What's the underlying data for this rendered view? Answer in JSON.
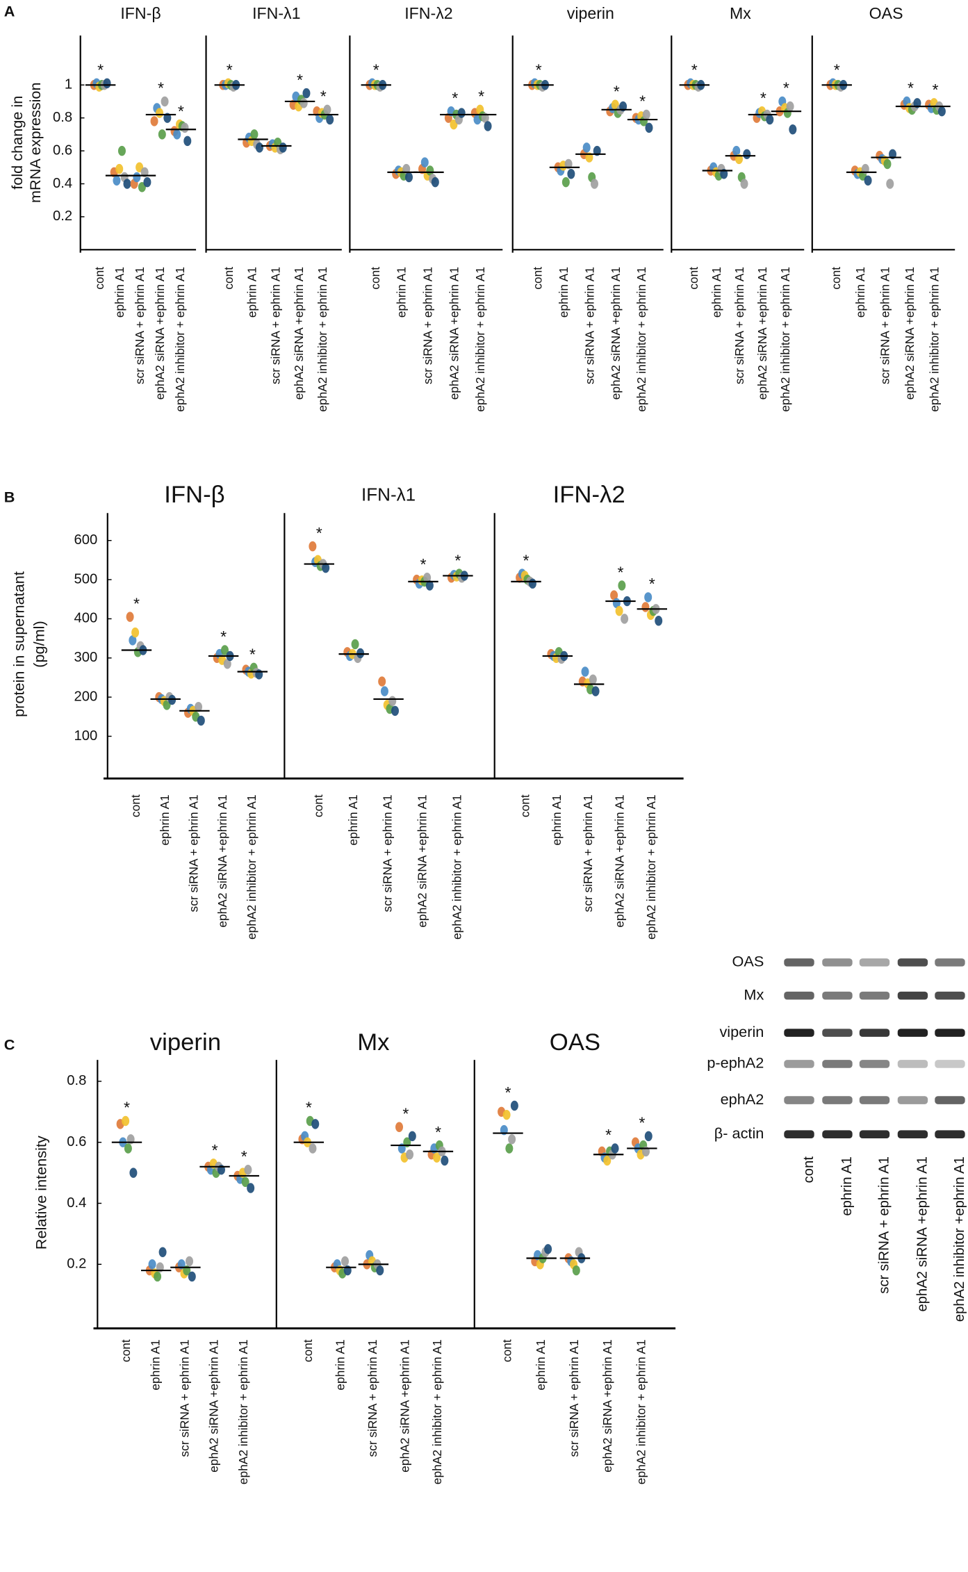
{
  "panel_labels": [
    "A",
    "B",
    "C"
  ],
  "chart_data": [
    {
      "type": "strip",
      "title": "IFN-β",
      "y_label": [
        "fold change in",
        "mRNA expression"
      ],
      "categories": [
        "cont",
        "ephrin A1",
        "scr siRNA  + ephrin A1",
        "ephA2 siRNA +ephrin A1",
        "ephA2 inhibitor + ephrin A1"
      ],
      "values": [
        1.0,
        0.45,
        0.45,
        0.82,
        0.73
      ],
      "annotations": [
        "*",
        null,
        null,
        "*",
        "*"
      ],
      "ylim": [
        0,
        1.3
      ],
      "yticks": [
        0.2,
        0.4,
        0.6,
        0.8,
        1
      ],
      "series": [
        {
          "color": "#e07b39",
          "values": [
            1.0,
            0.47,
            0.4,
            0.78,
            0.72
          ]
        },
        {
          "color": "#4a8cc7",
          "values": [
            1.01,
            0.42,
            0.44,
            0.86,
            0.7
          ]
        },
        {
          "color": "#f2c12e",
          "values": [
            0.99,
            0.49,
            0.5,
            0.83,
            0.76
          ]
        },
        {
          "color": "#5a9e4b",
          "values": [
            1.0,
            0.6,
            0.38,
            0.7,
            0.75
          ]
        },
        {
          "color": "#a0a0a0",
          "values": [
            1.0,
            0.44,
            0.47,
            0.9,
            0.74
          ]
        },
        {
          "color": "#1f4e79",
          "values": [
            1.01,
            0.4,
            0.41,
            0.8,
            0.66
          ]
        }
      ]
    },
    {
      "type": "strip",
      "title": "IFN-λ1",
      "categories": [
        "cont",
        "ephrin A1",
        "scr siRNA  + ephrin A1",
        "ephA2 siRNA +ephrin A1",
        "ephA2 inhibitor + ephrin A1"
      ],
      "values": [
        1.0,
        0.67,
        0.63,
        0.9,
        0.82
      ],
      "annotations": [
        "*",
        null,
        null,
        "*",
        "*"
      ],
      "ylim": [
        0,
        1.3
      ],
      "series": [
        {
          "color": "#e07b39",
          "values": [
            1.0,
            0.65,
            0.63,
            0.88,
            0.84
          ]
        },
        {
          "color": "#4a8cc7",
          "values": [
            1.0,
            0.68,
            0.64,
            0.93,
            0.8
          ]
        },
        {
          "color": "#f2c12e",
          "values": [
            1.01,
            0.66,
            0.62,
            0.87,
            0.83
          ]
        },
        {
          "color": "#5a9e4b",
          "values": [
            1.0,
            0.7,
            0.65,
            0.91,
            0.82
          ]
        },
        {
          "color": "#a0a0a0",
          "values": [
            0.99,
            0.64,
            0.61,
            0.89,
            0.85
          ]
        },
        {
          "color": "#1f4e79",
          "values": [
            1.0,
            0.62,
            0.62,
            0.95,
            0.79
          ]
        }
      ]
    },
    {
      "type": "strip",
      "title": "IFN-λ2",
      "categories": [
        "cont",
        "ephrin A1",
        "scr siRNA  + ephrin A1",
        "ephA2 siRNA +ephrin A1",
        "ephA2 inhibitor + ephrin A1"
      ],
      "values": [
        1.0,
        0.47,
        0.47,
        0.82,
        0.82
      ],
      "annotations": [
        "*",
        null,
        null,
        "*",
        "*"
      ],
      "ylim": [
        0,
        1.3
      ],
      "series": [
        {
          "color": "#e07b39",
          "values": [
            1.0,
            0.46,
            0.49,
            0.8,
            0.83
          ]
        },
        {
          "color": "#4a8cc7",
          "values": [
            1.01,
            0.48,
            0.53,
            0.84,
            0.79
          ]
        },
        {
          "color": "#f2c12e",
          "values": [
            1.0,
            0.47,
            0.45,
            0.76,
            0.85
          ]
        },
        {
          "color": "#5a9e4b",
          "values": [
            1.0,
            0.45,
            0.48,
            0.82,
            0.81
          ]
        },
        {
          "color": "#a0a0a0",
          "values": [
            0.99,
            0.49,
            0.43,
            0.79,
            0.8
          ]
        },
        {
          "color": "#1f4e79",
          "values": [
            1.0,
            0.44,
            0.41,
            0.83,
            0.75
          ]
        }
      ]
    },
    {
      "type": "strip",
      "title": "viperin",
      "categories": [
        "cont",
        "ephrin A1",
        "scr siRNA  + ephrin A1",
        "ephA2 siRNA +ephrin A1",
        "ephA2 inhibitor + ephrin A1"
      ],
      "values": [
        1.0,
        0.5,
        0.58,
        0.85,
        0.79
      ],
      "annotations": [
        "*",
        null,
        null,
        "*",
        "*"
      ],
      "ylim": [
        0,
        1.3
      ],
      "series": [
        {
          "color": "#e07b39",
          "values": [
            1.0,
            0.5,
            0.58,
            0.84,
            0.8
          ]
        },
        {
          "color": "#4a8cc7",
          "values": [
            1.01,
            0.48,
            0.62,
            0.86,
            0.79
          ]
        },
        {
          "color": "#f2c12e",
          "values": [
            1.0,
            0.51,
            0.56,
            0.88,
            0.81
          ]
        },
        {
          "color": "#5a9e4b",
          "values": [
            1.0,
            0.41,
            0.44,
            0.83,
            0.78
          ]
        },
        {
          "color": "#a0a0a0",
          "values": [
            0.99,
            0.52,
            0.4,
            0.85,
            0.82
          ]
        },
        {
          "color": "#1f4e79",
          "values": [
            1.0,
            0.46,
            0.6,
            0.87,
            0.74
          ]
        }
      ]
    },
    {
      "type": "strip",
      "title": "Mx",
      "categories": [
        "cont",
        "ephrin A1",
        "scr siRNA  + ephrin A1",
        "ephA2 siRNA +ephrin A1",
        "ephA2 inhibitor + ephrin A1"
      ],
      "values": [
        1.0,
        0.48,
        0.57,
        0.82,
        0.84
      ],
      "annotations": [
        "*",
        null,
        null,
        "*",
        "*"
      ],
      "ylim": [
        0,
        1.3
      ],
      "series": [
        {
          "color": "#e07b39",
          "values": [
            1.0,
            0.48,
            0.57,
            0.8,
            0.84
          ]
        },
        {
          "color": "#4a8cc7",
          "values": [
            1.01,
            0.5,
            0.6,
            0.83,
            0.9
          ]
        },
        {
          "color": "#f2c12e",
          "values": [
            1.0,
            0.47,
            0.55,
            0.84,
            0.86
          ]
        },
        {
          "color": "#5a9e4b",
          "values": [
            1.0,
            0.45,
            0.44,
            0.81,
            0.83
          ]
        },
        {
          "color": "#a0a0a0",
          "values": [
            0.99,
            0.49,
            0.4,
            0.82,
            0.87
          ]
        },
        {
          "color": "#1f4e79",
          "values": [
            1.0,
            0.46,
            0.58,
            0.79,
            0.73
          ]
        }
      ]
    },
    {
      "type": "strip",
      "title": "OAS",
      "categories": [
        "cont",
        "ephrin A1",
        "scr siRNA  + ephrin A1",
        "ephA2 siRNA +ephrin A1",
        "ephA2 inhibitor + ephrin A1"
      ],
      "values": [
        1.0,
        0.47,
        0.56,
        0.87,
        0.87
      ],
      "annotations": [
        "*",
        null,
        null,
        "*",
        "*"
      ],
      "ylim": [
        0,
        1.3
      ],
      "series": [
        {
          "color": "#e07b39",
          "values": [
            1.0,
            0.48,
            0.57,
            0.88,
            0.88
          ]
        },
        {
          "color": "#4a8cc7",
          "values": [
            1.01,
            0.46,
            0.55,
            0.9,
            0.86
          ]
        },
        {
          "color": "#f2c12e",
          "values": [
            1.0,
            0.47,
            0.54,
            0.86,
            0.89
          ]
        },
        {
          "color": "#5a9e4b",
          "values": [
            1.0,
            0.45,
            0.52,
            0.85,
            0.85
          ]
        },
        {
          "color": "#a0a0a0",
          "values": [
            0.99,
            0.49,
            0.4,
            0.87,
            0.87
          ]
        },
        {
          "color": "#1f4e79",
          "values": [
            1.0,
            0.42,
            0.58,
            0.89,
            0.84
          ]
        }
      ]
    },
    {
      "type": "strip",
      "title": "IFN-β",
      "y_label": [
        "protein in supernatant",
        "(pg/ml)"
      ],
      "categories": [
        "cont",
        "ephrin A1",
        "scr siRNA + ephrin A1",
        "ephA2 siRNA +ephrin A1",
        "ephA2 inhibitor + ephrin A1"
      ],
      "values": [
        320,
        195,
        165,
        305,
        265
      ],
      "annotations": [
        "*",
        null,
        null,
        "*",
        "*"
      ],
      "ylim": [
        0,
        670
      ],
      "yticks": [
        100,
        200,
        300,
        400,
        500,
        600
      ],
      "series": [
        {
          "color": "#e07b39",
          "values": [
            405,
            200,
            160,
            300,
            270
          ]
        },
        {
          "color": "#4a8cc7",
          "values": [
            345,
            195,
            170,
            310,
            265
          ]
        },
        {
          "color": "#f2c12e",
          "values": [
            365,
            190,
            165,
            295,
            260
          ]
        },
        {
          "color": "#5a9e4b",
          "values": [
            315,
            180,
            150,
            320,
            275
          ]
        },
        {
          "color": "#a0a0a0",
          "values": [
            330,
            200,
            175,
            285,
            262
          ]
        },
        {
          "color": "#1f4e79",
          "values": [
            320,
            193,
            140,
            305,
            258
          ]
        }
      ]
    },
    {
      "type": "strip",
      "title": "IFN-λ1",
      "categories": [
        "cont",
        "ephrin A1",
        "scr siRNA  + ephrin A1",
        "ephA2 siRNA +ephrin A1",
        "ephA2 inhibitor + ephrin A1"
      ],
      "values": [
        540,
        310,
        195,
        495,
        510
      ],
      "annotations": [
        "*",
        null,
        null,
        "*",
        "*"
      ],
      "ylim": [
        0,
        670
      ],
      "series": [
        {
          "color": "#e07b39",
          "values": [
            585,
            315,
            240,
            500,
            505
          ]
        },
        {
          "color": "#4a8cc7",
          "values": [
            545,
            305,
            215,
            490,
            512
          ]
        },
        {
          "color": "#f2c12e",
          "values": [
            550,
            310,
            180,
            498,
            508
          ]
        },
        {
          "color": "#5a9e4b",
          "values": [
            535,
            335,
            170,
            495,
            515
          ]
        },
        {
          "color": "#a0a0a0",
          "values": [
            540,
            300,
            190,
            505,
            505
          ]
        },
        {
          "color": "#1f4e79",
          "values": [
            530,
            312,
            165,
            485,
            510
          ]
        }
      ]
    },
    {
      "type": "strip",
      "title": "IFN-λ2",
      "categories": [
        "cont",
        "ephrin A1",
        "scr siRNA  + ephrin A1",
        "ephA2 siRNA +ephrin A1",
        "ephA2 inhibitor + ephrin A1"
      ],
      "values": [
        495,
        305,
        233,
        445,
        425
      ],
      "annotations": [
        "*",
        null,
        null,
        "*",
        "*"
      ],
      "ylim": [
        0,
        670
      ],
      "series": [
        {
          "color": "#e07b39",
          "values": [
            505,
            310,
            240,
            460,
            430
          ]
        },
        {
          "color": "#4a8cc7",
          "values": [
            515,
            305,
            265,
            440,
            455
          ]
        },
        {
          "color": "#f2c12e",
          "values": [
            510,
            300,
            235,
            420,
            410
          ]
        },
        {
          "color": "#5a9e4b",
          "values": [
            500,
            315,
            220,
            485,
            420
          ]
        },
        {
          "color": "#a0a0a0",
          "values": [
            495,
            298,
            245,
            400,
            425
          ]
        },
        {
          "color": "#1f4e79",
          "values": [
            490,
            305,
            215,
            445,
            395
          ]
        }
      ]
    },
    {
      "type": "strip",
      "title": "viperin",
      "y_label": [
        "Relative intensity"
      ],
      "categories": [
        "cont",
        "ephrin A1",
        "scr siRNA + ephrin A1",
        "ephA2 siRNA +ephrin A1",
        "ephA2 inhibitor + ephrin A1"
      ],
      "values": [
        0.6,
        0.18,
        0.19,
        0.52,
        0.49
      ],
      "annotations": [
        "*",
        null,
        null,
        "*",
        "*"
      ],
      "ylim": [
        0,
        0.87
      ],
      "yticks": [
        0.2,
        0.4,
        0.6,
        0.8
      ],
      "series": [
        {
          "color": "#e07b39",
          "values": [
            0.66,
            0.18,
            0.19,
            0.52,
            0.49
          ]
        },
        {
          "color": "#4a8cc7",
          "values": [
            0.6,
            0.2,
            0.2,
            0.51,
            0.48
          ]
        },
        {
          "color": "#f2c12e",
          "values": [
            0.67,
            0.17,
            0.17,
            0.53,
            0.5
          ]
        },
        {
          "color": "#5a9e4b",
          "values": [
            0.58,
            0.16,
            0.18,
            0.5,
            0.47
          ]
        },
        {
          "color": "#a0a0a0",
          "values": [
            0.61,
            0.19,
            0.21,
            0.52,
            0.51
          ]
        },
        {
          "color": "#1f4e79",
          "values": [
            0.5,
            0.24,
            0.16,
            0.51,
            0.45
          ]
        }
      ]
    },
    {
      "type": "strip",
      "title": "Mx",
      "categories": [
        "cont",
        "ephrin A1",
        "scr siRNA + ephrin A1",
        "ephA2 siRNA +ephrin A1",
        "ephA2 inhibitor + ephrin A1"
      ],
      "values": [
        0.6,
        0.19,
        0.2,
        0.59,
        0.57
      ],
      "annotations": [
        "*",
        null,
        null,
        "*",
        "*"
      ],
      "ylim": [
        0,
        0.87
      ],
      "series": [
        {
          "color": "#e07b39",
          "values": [
            0.61,
            0.19,
            0.2,
            0.65,
            0.56
          ]
        },
        {
          "color": "#4a8cc7",
          "values": [
            0.62,
            0.2,
            0.23,
            0.58,
            0.58
          ]
        },
        {
          "color": "#f2c12e",
          "values": [
            0.6,
            0.18,
            0.21,
            0.55,
            0.55
          ]
        },
        {
          "color": "#5a9e4b",
          "values": [
            0.67,
            0.17,
            0.19,
            0.6,
            0.59
          ]
        },
        {
          "color": "#a0a0a0",
          "values": [
            0.58,
            0.21,
            0.2,
            0.56,
            0.57
          ]
        },
        {
          "color": "#1f4e79",
          "values": [
            0.66,
            0.18,
            0.18,
            0.62,
            0.54
          ]
        }
      ]
    },
    {
      "type": "strip",
      "title": "OAS",
      "categories": [
        "cont",
        "ephrin A1",
        "scr siRNA  + ephrin A1",
        "ephA2 siRNA +ephrin A1",
        "ephA2 inhibitor + ephrin A1"
      ],
      "values": [
        0.63,
        0.22,
        0.22,
        0.56,
        0.58
      ],
      "annotations": [
        "*",
        null,
        null,
        "*",
        "*"
      ],
      "ylim": [
        0,
        0.87
      ],
      "series": [
        {
          "color": "#e07b39",
          "values": [
            0.7,
            0.21,
            0.22,
            0.57,
            0.6
          ]
        },
        {
          "color": "#4a8cc7",
          "values": [
            0.64,
            0.23,
            0.21,
            0.55,
            0.58
          ]
        },
        {
          "color": "#f2c12e",
          "values": [
            0.69,
            0.2,
            0.2,
            0.54,
            0.56
          ]
        },
        {
          "color": "#5a9e4b",
          "values": [
            0.58,
            0.22,
            0.18,
            0.57,
            0.59
          ]
        },
        {
          "color": "#a0a0a0",
          "values": [
            0.61,
            0.24,
            0.24,
            0.56,
            0.57
          ]
        },
        {
          "color": "#1f4e79",
          "values": [
            0.72,
            0.25,
            0.22,
            0.58,
            0.62
          ]
        }
      ]
    }
  ],
  "blot": {
    "bands": [
      "OAS",
      "Mx",
      "viperin",
      "p-ephA2",
      "ephA2",
      "β- actin"
    ],
    "lanes": [
      "cont",
      "ephrin A1",
      "scr siRNA + ephrin A1",
      "ephA2 siRNA +ephrin A1",
      "ephA2 inhibitor +ephrin A1"
    ]
  }
}
